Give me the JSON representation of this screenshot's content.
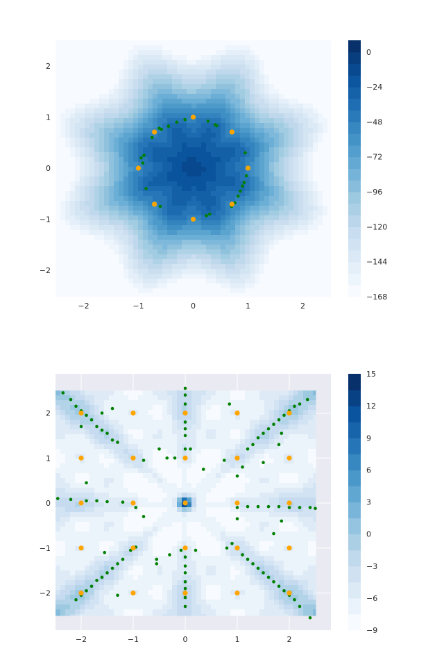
{
  "chart_data": [
    {
      "type": "heatmap",
      "subtype": "filled-contour",
      "title": "",
      "xlabel": "",
      "ylabel": "",
      "xlim": [
        -2.5,
        2.5
      ],
      "ylim": [
        -2.5,
        2.5
      ],
      "xticks": [
        -2,
        -1,
        0,
        1,
        2
      ],
      "yticks": [
        -2,
        -1,
        0,
        1,
        2
      ],
      "colormap": "Blues",
      "colorbar": {
        "min": -168,
        "max": 8,
        "levels": 22,
        "ticks": [
          0,
          -24,
          -48,
          -72,
          -96,
          -120,
          -144,
          -168
        ]
      },
      "field": {
        "description": "8-fold star-shaped well, minima on the unit circle",
        "center_value": -24,
        "well_value": 4,
        "edge_value": -165
      },
      "minima_orange": [
        [
          1.0,
          0.0
        ],
        [
          0.707,
          0.707
        ],
        [
          0.0,
          1.0
        ],
        [
          -0.707,
          0.707
        ],
        [
          -1.0,
          0.0
        ],
        [
          -0.707,
          -0.707
        ],
        [
          0.0,
          -1.0
        ],
        [
          0.707,
          -0.707
        ]
      ],
      "samples_green": [
        [
          -0.62,
          0.78
        ],
        [
          -0.58,
          0.76
        ],
        [
          -0.45,
          0.82
        ],
        [
          -0.3,
          0.9
        ],
        [
          -0.15,
          0.95
        ],
        [
          0.27,
          0.92
        ],
        [
          0.4,
          0.85
        ],
        [
          0.43,
          0.83
        ],
        [
          0.95,
          0.3
        ],
        [
          0.97,
          -0.15
        ],
        [
          0.93,
          -0.28
        ],
        [
          0.9,
          -0.35
        ],
        [
          0.86,
          -0.45
        ],
        [
          0.82,
          -0.55
        ],
        [
          0.76,
          -0.68
        ],
        [
          0.7,
          -0.75
        ],
        [
          0.3,
          -0.9
        ],
        [
          0.24,
          -0.93
        ],
        [
          -0.6,
          -0.75
        ],
        [
          -0.86,
          -0.4
        ],
        [
          -0.92,
          0.1
        ],
        [
          -0.95,
          0.2
        ],
        [
          -0.9,
          0.25
        ],
        [
          -0.75,
          0.6
        ]
      ]
    },
    {
      "type": "heatmap",
      "subtype": "filled-contour",
      "title": "",
      "xlabel": "",
      "ylabel": "",
      "xlim": [
        -2.5,
        2.8
      ],
      "ylim": [
        -2.8,
        2.8
      ],
      "xticks": [
        -2,
        -1,
        0,
        1,
        2
      ],
      "yticks": [
        -2,
        -1,
        0,
        1,
        2
      ],
      "colormap": "Blues",
      "colorbar": {
        "min": -9,
        "max": 15,
        "levels": 16,
        "ticks": [
          15,
          12,
          9,
          6,
          3,
          0,
          -3,
          -6,
          -9
        ]
      },
      "grid": true,
      "minima_orange": [
        [
          -2,
          -2
        ],
        [
          -2,
          -1
        ],
        [
          -2,
          0
        ],
        [
          -2,
          1
        ],
        [
          -2,
          2
        ],
        [
          -1,
          -2
        ],
        [
          -1,
          -1
        ],
        [
          -1,
          0
        ],
        [
          -1,
          1
        ],
        [
          -1,
          2
        ],
        [
          0,
          -2
        ],
        [
          0,
          -1
        ],
        [
          0,
          0
        ],
        [
          0,
          1
        ],
        [
          0,
          2
        ],
        [
          1,
          -2
        ],
        [
          1,
          -1
        ],
        [
          1,
          0
        ],
        [
          1,
          1
        ],
        [
          1,
          2
        ],
        [
          2,
          -2
        ],
        [
          2,
          -1
        ],
        [
          2,
          0
        ],
        [
          2,
          1
        ],
        [
          2,
          2
        ]
      ],
      "samples_green": [
        [
          -2.35,
          2.45
        ],
        [
          -2.2,
          2.3
        ],
        [
          -2.1,
          2.15
        ],
        [
          -2.0,
          2.05
        ],
        [
          -1.9,
          1.95
        ],
        [
          -1.8,
          1.85
        ],
        [
          -1.7,
          1.7
        ],
        [
          -1.6,
          1.62
        ],
        [
          -1.5,
          1.55
        ],
        [
          -1.4,
          1.4
        ],
        [
          -1.3,
          1.35
        ],
        [
          -2.0,
          1.7
        ],
        [
          -1.6,
          2.0
        ],
        [
          -1.4,
          2.1
        ],
        [
          -1.0,
          1.0
        ],
        [
          -0.8,
          0.95
        ],
        [
          -0.5,
          1.2
        ],
        [
          -0.2,
          1.0
        ],
        [
          0.1,
          1.2
        ],
        [
          -0.35,
          1.0
        ],
        [
          0.0,
          2.55
        ],
        [
          0.0,
          2.4
        ],
        [
          0.0,
          2.2
        ],
        [
          0.0,
          2.0
        ],
        [
          0.0,
          1.8
        ],
        [
          0.0,
          1.65
        ],
        [
          0.0,
          1.5
        ],
        [
          0.0,
          1.2
        ],
        [
          0.0,
          1.0
        ],
        [
          0.35,
          0.75
        ],
        [
          0.75,
          0.95
        ],
        [
          1.0,
          0.6
        ],
        [
          1.1,
          0.8
        ],
        [
          1.2,
          1.2
        ],
        [
          1.3,
          1.3
        ],
        [
          1.4,
          1.45
        ],
        [
          1.5,
          1.55
        ],
        [
          1.6,
          1.65
        ],
        [
          1.7,
          1.75
        ],
        [
          1.8,
          1.85
        ],
        [
          1.9,
          1.95
        ],
        [
          2.0,
          2.05
        ],
        [
          2.1,
          2.15
        ],
        [
          2.2,
          2.2
        ],
        [
          2.35,
          2.3
        ],
        [
          1.8,
          1.3
        ],
        [
          1.85,
          1.55
        ],
        [
          1.5,
          0.9
        ],
        [
          0.85,
          2.2
        ],
        [
          1.0,
          2.0
        ],
        [
          -2.45,
          0.1
        ],
        [
          -2.2,
          0.08
        ],
        [
          -1.9,
          0.05
        ],
        [
          -1.7,
          0.05
        ],
        [
          -1.5,
          0.03
        ],
        [
          -1.2,
          0.02
        ],
        [
          -1.0,
          0.0
        ],
        [
          -0.95,
          -0.1
        ],
        [
          -1.9,
          0.45
        ],
        [
          -0.8,
          -0.3
        ],
        [
          1.0,
          0.0
        ],
        [
          1.0,
          -0.1
        ],
        [
          1.2,
          -0.08
        ],
        [
          1.4,
          -0.08
        ],
        [
          1.6,
          -0.08
        ],
        [
          1.8,
          -0.08
        ],
        [
          2.0,
          -0.1
        ],
        [
          2.2,
          -0.1
        ],
        [
          2.4,
          -0.1
        ],
        [
          2.5,
          -0.12
        ],
        [
          1.0,
          -0.35
        ],
        [
          1.85,
          -0.4
        ],
        [
          1.7,
          -0.68
        ],
        [
          -2.1,
          -2.15
        ],
        [
          -2.0,
          -2.05
        ],
        [
          -1.9,
          -1.95
        ],
        [
          -1.8,
          -1.85
        ],
        [
          -1.7,
          -1.72
        ],
        [
          -1.6,
          -1.65
        ],
        [
          -1.5,
          -1.55
        ],
        [
          -1.4,
          -1.45
        ],
        [
          -1.3,
          -1.35
        ],
        [
          -1.2,
          -1.25
        ],
        [
          -1.55,
          -1.1
        ],
        [
          -1.05,
          -1.05
        ],
        [
          -0.95,
          -0.98
        ],
        [
          -1.3,
          -2.05
        ],
        [
          -0.55,
          -1.25
        ],
        [
          -0.55,
          -1.35
        ],
        [
          -0.3,
          -1.15
        ],
        [
          -0.08,
          -1.05
        ],
        [
          0.0,
          -1.2
        ],
        [
          0.0,
          -1.4
        ],
        [
          0.0,
          -1.55
        ],
        [
          0.0,
          -1.75
        ],
        [
          0.0,
          -1.9
        ],
        [
          0.0,
          -2.1
        ],
        [
          0.0,
          -2.3
        ],
        [
          0.2,
          -1.05
        ],
        [
          0.8,
          -1.0
        ],
        [
          0.9,
          -0.9
        ],
        [
          1.0,
          -1.0
        ],
        [
          1.1,
          -1.15
        ],
        [
          1.2,
          -1.25
        ],
        [
          1.3,
          -1.35
        ],
        [
          1.4,
          -1.45
        ],
        [
          1.5,
          -1.55
        ],
        [
          1.6,
          -1.65
        ],
        [
          1.7,
          -1.75
        ],
        [
          1.8,
          -1.85
        ],
        [
          1.9,
          -1.95
        ],
        [
          2.0,
          -2.05
        ],
        [
          2.1,
          -2.15
        ],
        [
          2.2,
          -2.3
        ],
        [
          2.4,
          -2.55
        ]
      ]
    }
  ]
}
